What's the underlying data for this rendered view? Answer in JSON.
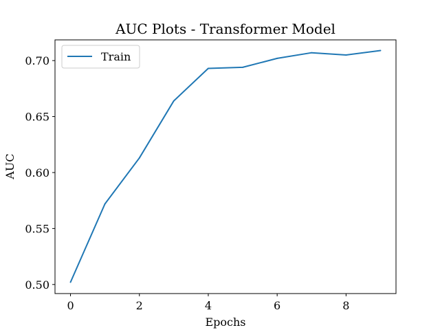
{
  "chart_data": {
    "type": "line",
    "title": "AUC Plots - Transformer Model",
    "xlabel": "Epochs",
    "ylabel": "AUC",
    "xlim": [
      -0.45,
      9.45
    ],
    "ylim": [
      0.4919,
      0.7185
    ],
    "x_ticks": [
      0,
      2,
      4,
      6,
      8
    ],
    "y_ticks": [
      0.5,
      0.55,
      0.6,
      0.65,
      0.7
    ],
    "y_tick_labels": [
      "0.50",
      "0.55",
      "0.60",
      "0.65",
      "0.70"
    ],
    "grid": false,
    "legend": {
      "position": "top-left"
    },
    "series": [
      {
        "name": "Train",
        "color": "#1f77b4",
        "x": [
          0,
          1,
          2,
          3,
          4,
          5,
          6,
          7,
          8,
          9
        ],
        "values": [
          0.502,
          0.572,
          0.613,
          0.664,
          0.693,
          0.694,
          0.702,
          0.707,
          0.705,
          0.709
        ]
      }
    ]
  }
}
